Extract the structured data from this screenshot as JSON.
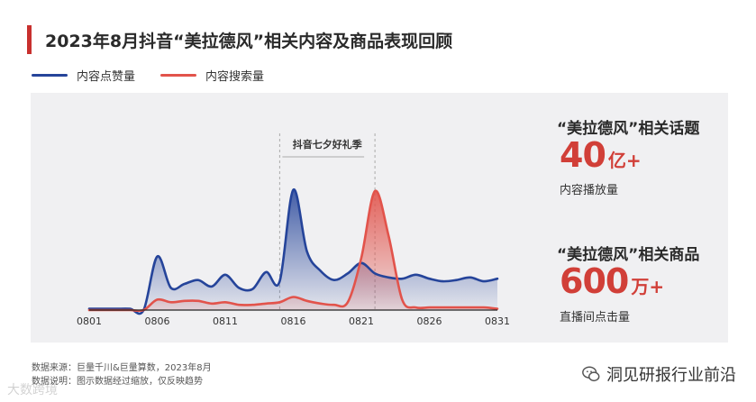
{
  "title": "2023年8月抖音“美拉德风”相关内容及商品表现回顾",
  "legend": [
    {
      "label": "内容点赞量",
      "color": "#25449a"
    },
    {
      "label": "内容搜索量",
      "color": "#e2534b"
    }
  ],
  "annotation": {
    "label": "抖音七夕好礼季"
  },
  "stats": [
    {
      "title": "“美拉德风”相关话题",
      "number": "40",
      "unit": "亿+",
      "sub": "内容播放量"
    },
    {
      "title": "“美拉德风”相关商品",
      "number": "600",
      "unit": "万+",
      "sub": "直播间点击量"
    }
  ],
  "source": {
    "line1": "数据来源：巨量千川&巨量算数，2023年8月",
    "line2": "数据说明：图示数据经过缩放，仅反映趋势"
  },
  "watermark": {
    "right_text": "洞见研报行业前沿",
    "left_text": "大数跨境"
  },
  "colors": {
    "blue": "#25449a",
    "red": "#e2534b",
    "accent": "#c8302e"
  },
  "chart_data": {
    "type": "area",
    "x": [
      "0801",
      "0802",
      "0803",
      "0804",
      "0805",
      "0806",
      "0807",
      "0808",
      "0809",
      "0810",
      "0811",
      "0812",
      "0813",
      "0814",
      "0815",
      "0816",
      "0817",
      "0818",
      "0819",
      "0820",
      "0821",
      "0822",
      "0823",
      "0824",
      "0825",
      "0826",
      "0827",
      "0828",
      "0829",
      "0830",
      "0831"
    ],
    "tick_labels": [
      "0801",
      "0806",
      "0811",
      "0816",
      "0821",
      "0826",
      "0831"
    ],
    "series": [
      {
        "name": "内容点赞量",
        "color": "#25449a",
        "values": [
          1,
          1,
          1,
          1,
          0,
          41,
          17,
          20,
          23,
          18,
          27,
          17,
          16,
          29,
          22,
          92,
          45,
          30,
          23,
          28,
          36,
          28,
          25,
          24,
          27,
          24,
          22,
          23,
          25,
          22,
          24
        ]
      },
      {
        "name": "内容搜索量",
        "color": "#e2534b",
        "values": [
          0,
          0,
          0,
          0,
          0,
          8,
          6,
          7,
          7,
          5,
          6,
          4,
          4,
          5,
          6,
          10,
          7,
          5,
          4,
          6,
          40,
          91,
          57,
          8,
          2,
          2,
          2,
          2,
          2,
          2,
          1
        ]
      }
    ],
    "ylim": [
      0,
      100
    ],
    "highlight_range": [
      "0815",
      "0822"
    ],
    "grid": false
  }
}
